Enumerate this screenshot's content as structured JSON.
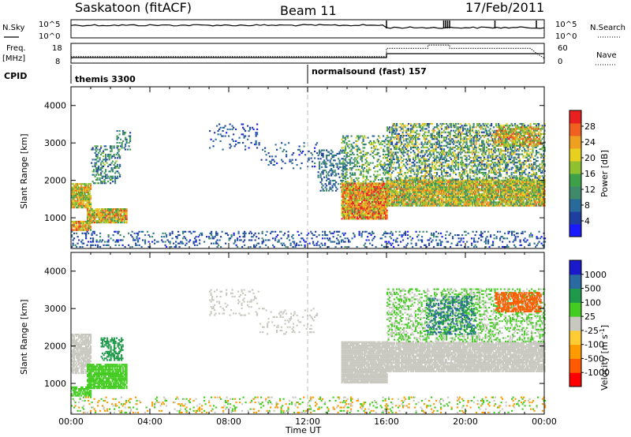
{
  "header": {
    "station": "Saskatoon (fitACF)",
    "beam": "Beam 11",
    "date": "17/Feb/2011"
  },
  "summary": {
    "nsky_label": "N.Sky",
    "nsky_top": "10^5",
    "nsky_bottom": "10^0",
    "nsearch_top": "10^5",
    "nsearch_bottom": "10^0",
    "nsearch_label": "N.Search",
    "freq_label": "Freq.",
    "freq_unit": "[MHz]",
    "freq_ticks": [
      "18",
      "8"
    ],
    "nave_ticks": [
      "60",
      "0"
    ],
    "nave_label": "Nave",
    "cpid_label": "CPID",
    "cpid_modes": [
      {
        "label": "themis 3300",
        "start_h": 0,
        "end_h": 12
      },
      {
        "label": "normalsound (fast) 157",
        "start_h": 12,
        "end_h": 24
      }
    ],
    "freq_mhz_series": {
      "hours": [
        0,
        0.1,
        16,
        16,
        24
      ],
      "values": [
        10.5,
        10.8,
        10.8,
        12.8,
        12.8
      ]
    },
    "nave_series": {
      "hours": [
        0,
        16,
        16,
        18.1,
        18.1,
        19.2,
        19.2,
        23.3,
        23.6,
        24
      ],
      "values": [
        20,
        20,
        45,
        45,
        55,
        55,
        45,
        45,
        30,
        15
      ]
    }
  },
  "chart_data": [
    {
      "type": "heatmap",
      "panel": "power",
      "ylabel": "Slant Range [km]",
      "xlabel": "Time UT",
      "xticks": [
        "00:00",
        "04:00",
        "08:00",
        "12:00",
        "16:00",
        "20:00",
        "00:00"
      ],
      "xlim_hours": [
        0,
        24
      ],
      "yticks": [
        1000,
        2000,
        3000,
        4000
      ],
      "ylim_km": [
        180,
        4500
      ],
      "colorbar": {
        "label": "Power [dB]",
        "ticks": [
          "28",
          "24",
          "20",
          "16",
          "12",
          "8",
          "4"
        ],
        "range": [
          0,
          30
        ]
      },
      "regions": [
        {
          "t0": 0.0,
          "t1": 1.0,
          "r0": 1250,
          "r1": 1900,
          "v0": 12,
          "v1": 26,
          "density": 0.9
        },
        {
          "t0": 0.0,
          "t1": 1.0,
          "r0": 650,
          "r1": 900,
          "v0": 14,
          "v1": 28,
          "density": 0.85
        },
        {
          "t0": 0.8,
          "t1": 2.8,
          "r0": 850,
          "r1": 1250,
          "v0": 12,
          "v1": 28,
          "density": 0.9
        },
        {
          "t0": 1.0,
          "t1": 2.5,
          "r0": 1900,
          "r1": 2900,
          "v0": 4,
          "v1": 16,
          "density": 0.35
        },
        {
          "t0": 2.3,
          "t1": 3.0,
          "r0": 2800,
          "r1": 3300,
          "v0": 4,
          "v1": 14,
          "density": 0.25
        },
        {
          "t0": 7.0,
          "t1": 9.5,
          "r0": 2800,
          "r1": 3500,
          "v0": 2,
          "v1": 8,
          "density": 0.12
        },
        {
          "t0": 9.5,
          "t1": 12.5,
          "r0": 2300,
          "r1": 3000,
          "v0": 2,
          "v1": 10,
          "density": 0.1
        },
        {
          "t0": 12.5,
          "t1": 14.0,
          "r0": 1700,
          "r1": 2800,
          "v0": 4,
          "v1": 12,
          "density": 0.3
        },
        {
          "t0": 13.7,
          "t1": 16.0,
          "r0": 950,
          "r1": 1900,
          "v0": 14,
          "v1": 30,
          "density": 0.95
        },
        {
          "t0": 13.7,
          "t1": 16.0,
          "r0": 1900,
          "r1": 3200,
          "v0": 6,
          "v1": 20,
          "density": 0.3
        },
        {
          "t0": 16.0,
          "t1": 24.0,
          "r0": 1300,
          "r1": 2000,
          "v0": 10,
          "v1": 26,
          "density": 0.9
        },
        {
          "t0": 16.0,
          "t1": 24.0,
          "r0": 2000,
          "r1": 3500,
          "v0": 4,
          "v1": 22,
          "density": 0.45
        },
        {
          "t0": 21.5,
          "t1": 23.8,
          "r0": 2900,
          "r1": 3400,
          "v0": 12,
          "v1": 28,
          "density": 0.6
        },
        {
          "t0": 0.0,
          "t1": 24.0,
          "r0": 200,
          "r1": 650,
          "v0": 2,
          "v1": 10,
          "density": 0.18
        }
      ]
    },
    {
      "type": "heatmap",
      "panel": "velocity",
      "ylabel": "Slant Range [km]",
      "xlabel": "Time UT",
      "xticks": [
        "00:00",
        "04:00",
        "08:00",
        "12:00",
        "16:00",
        "20:00",
        "00:00"
      ],
      "xlim_hours": [
        0,
        24
      ],
      "yticks": [
        1000,
        2000,
        3000,
        4000
      ],
      "ylim_km": [
        180,
        4500
      ],
      "colorbar": {
        "label": "Velocity [m s^-1]",
        "ticks": [
          "1000",
          "500",
          "100",
          "25",
          "-25",
          "-100",
          "-500",
          "-1000"
        ]
      },
      "regions": [
        {
          "t0": 0.0,
          "t1": 1.0,
          "r0": 1250,
          "r1": 2300,
          "v0": -25,
          "v1": 25,
          "density": 0.8
        },
        {
          "t0": 0.0,
          "t1": 1.0,
          "r0": 650,
          "r1": 900,
          "v0": 25,
          "v1": 100,
          "density": 0.7
        },
        {
          "t0": 0.8,
          "t1": 2.8,
          "r0": 850,
          "r1": 1500,
          "v0": 25,
          "v1": 100,
          "density": 0.85
        },
        {
          "t0": 1.5,
          "t1": 2.6,
          "r0": 1600,
          "r1": 2200,
          "v0": 100,
          "v1": 500,
          "density": 0.45
        },
        {
          "t0": 7.0,
          "t1": 9.5,
          "r0": 2800,
          "r1": 3500,
          "v0": -25,
          "v1": 25,
          "density": 0.12
        },
        {
          "t0": 9.5,
          "t1": 12.5,
          "r0": 2300,
          "r1": 3000,
          "v0": -25,
          "v1": 25,
          "density": 0.1
        },
        {
          "t0": 13.7,
          "t1": 16.0,
          "r0": 1000,
          "r1": 2100,
          "v0": -25,
          "v1": 25,
          "density": 0.95
        },
        {
          "t0": 16.0,
          "t1": 24.0,
          "r0": 1300,
          "r1": 2100,
          "v0": -25,
          "v1": 25,
          "density": 0.9
        },
        {
          "t0": 16.0,
          "t1": 24.0,
          "r0": 2100,
          "r1": 3500,
          "v0": -25,
          "v1": 100,
          "density": 0.35
        },
        {
          "t0": 18.0,
          "t1": 20.5,
          "r0": 2300,
          "r1": 3300,
          "v0": 100,
          "v1": 1000,
          "density": 0.35
        },
        {
          "t0": 21.5,
          "t1": 23.8,
          "r0": 2900,
          "r1": 3400,
          "v0": -500,
          "v1": -100,
          "density": 0.6
        },
        {
          "t0": 0.0,
          "t1": 24.0,
          "r0": 200,
          "r1": 650,
          "v0": -100,
          "v1": 100,
          "density": 0.15
        }
      ]
    }
  ],
  "colors": {
    "power_scale": [
      "#1a1aff",
      "#1f3fa0",
      "#2a6a9a",
      "#3f8a6a",
      "#3fa04a",
      "#8fc030",
      "#e8d020",
      "#f0a020",
      "#f06020",
      "#e82020"
    ],
    "velocity_neg": [
      "#ff0000",
      "#ff5a00",
      "#ff9a00",
      "#ffcc33"
    ],
    "velocity_zero": "#c8c8c0",
    "velocity_pos": [
      "#44cc22",
      "#1f9a4a",
      "#2a6aa0",
      "#1a1acc"
    ],
    "axis": "#000000",
    "midline": "#bbbbbb"
  }
}
